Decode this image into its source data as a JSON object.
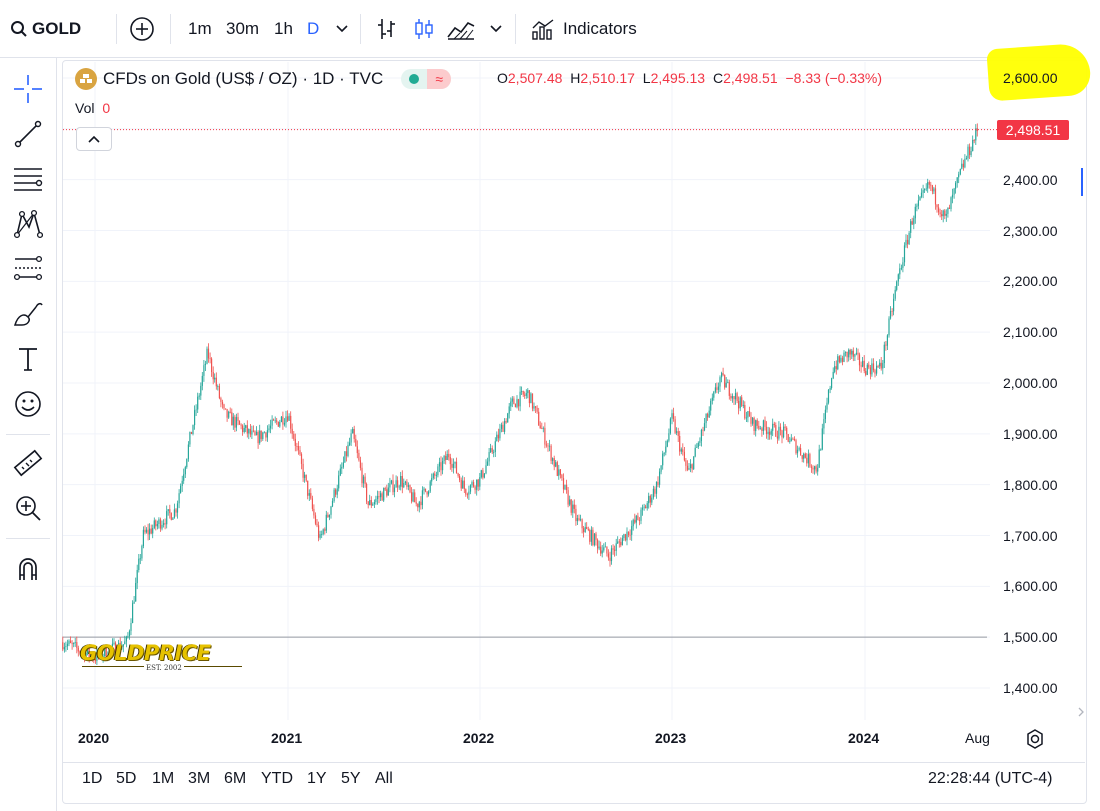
{
  "topbar": {
    "symbol": "GOLD",
    "intervals": [
      "1m",
      "30m",
      "1h",
      "D"
    ],
    "indicators_label": "Indicators"
  },
  "legend": {
    "title": "CFDs on Gold (US$ / OZ) · 1D · TVC",
    "o_label": "O",
    "o_value": "2,507.48",
    "h_label": "H",
    "h_value": "2,510.17",
    "l_label": "L",
    "l_value": "2,495.13",
    "c_label": "C",
    "c_value": "2,498.51",
    "change": "−8.33 (−0.33%)",
    "vol_label": "Vol",
    "vol_value": "0"
  },
  "price_axis": {
    "labels": [
      "2,600.00",
      "2,400.00",
      "2,300.00",
      "2,200.00",
      "2,100.00",
      "2,000.00",
      "1,900.00",
      "1,800.00",
      "1,700.00",
      "1,600.00",
      "1,500.00",
      "1,400.00"
    ],
    "last_price": "2,498.51"
  },
  "time_axis": {
    "labels": [
      "2020",
      "2021",
      "2022",
      "2023",
      "2024",
      "Aug"
    ]
  },
  "watermark": {
    "logo_text": "GOLDPRICE",
    "est_text": "EST. 2002"
  },
  "bottom": {
    "ranges": [
      "1D",
      "5D",
      "1M",
      "3M",
      "6M",
      "YTD",
      "1Y",
      "5Y",
      "All"
    ],
    "clock": "22:28:44 (UTC-4)"
  },
  "colors": {
    "up": "#26a69a",
    "down": "#ef5350",
    "interval_active": "#2962ff",
    "last_price_bg": "#f23645",
    "highlight": "#ffff00"
  },
  "chart_data": {
    "type": "line",
    "title": "",
    "xlabel": "",
    "ylabel": "",
    "ylim": [
      1380,
      2680
    ],
    "x": [
      "2019-11",
      "2020-01",
      "2020-03",
      "2020-04",
      "2020-06",
      "2020-08",
      "2020-09",
      "2020-11",
      "2021-01",
      "2021-03",
      "2021-05",
      "2021-06",
      "2021-08",
      "2021-09",
      "2021-11",
      "2021-12",
      "2022-01",
      "2022-03",
      "2022-04",
      "2022-06",
      "2022-07",
      "2022-09",
      "2022-11",
      "2022-12",
      "2023-01",
      "2023-02",
      "2023-04",
      "2023-05",
      "2023-06",
      "2023-08",
      "2023-10",
      "2023-11",
      "2023-12",
      "2024-01",
      "2024-02",
      "2024-03",
      "2024-04",
      "2024-05",
      "2024-06",
      "2024-07",
      "2024-08"
    ],
    "series": [
      {
        "values": [
          1490,
          1460,
          1490,
          1700,
          1750,
          2060,
          1940,
          1890,
          1940,
          1690,
          1900,
          1760,
          1810,
          1760,
          1860,
          1790,
          1810,
          1960,
          1980,
          1810,
          1730,
          1660,
          1740,
          1800,
          1930,
          1820,
          2010,
          1970,
          1920,
          1900,
          1830,
          2030,
          2060,
          2030,
          2030,
          2200,
          2330,
          2390,
          2320,
          2420,
          2498.51
        ]
      }
    ]
  }
}
